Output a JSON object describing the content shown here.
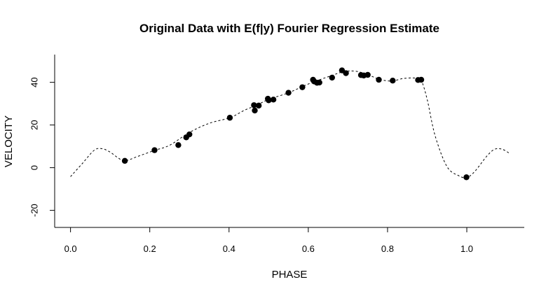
{
  "chart_data": {
    "type": "scatter",
    "title": "Original Data with E(f|y) Fourier Regression Estimate",
    "xlabel": "PHASE",
    "ylabel": "VELOCITY",
    "xlim": [
      -0.04,
      1.145
    ],
    "ylim": [
      -28,
      53
    ],
    "xticks": [
      "0.0",
      "0.2",
      "0.4",
      "0.6",
      "0.8",
      "1.0"
    ],
    "yticks": [
      "-20",
      "0",
      "20",
      "40"
    ],
    "grid": false,
    "legend": "none",
    "series": [
      {
        "kind": "points",
        "x": [
          0.137,
          0.212,
          0.272,
          0.292,
          0.3,
          0.402,
          0.463,
          0.465,
          0.475,
          0.498,
          0.5,
          0.512,
          0.55,
          0.585,
          0.612,
          0.615,
          0.622,
          0.628,
          0.66,
          0.685,
          0.695,
          0.733,
          0.74,
          0.75,
          0.778,
          0.813,
          0.877,
          0.885,
          0.999
        ],
        "y": [
          3.2,
          8.2,
          10.6,
          14.2,
          15.6,
          23.4,
          29.3,
          26.8,
          29.1,
          32.3,
          31.6,
          31.9,
          35.1,
          37.7,
          41.2,
          40.4,
          39.8,
          39.9,
          42.2,
          45.6,
          44.3,
          43.4,
          43.2,
          43.5,
          41.2,
          40.8,
          41.1,
          41.2,
          -4.5
        ]
      },
      {
        "kind": "dashed-curve",
        "x": [
          0.0,
          0.03,
          0.06,
          0.08,
          0.1,
          0.12,
          0.137,
          0.17,
          0.212,
          0.25,
          0.3,
          0.35,
          0.402,
          0.44,
          0.47,
          0.5,
          0.55,
          0.6,
          0.65,
          0.69,
          0.72,
          0.75,
          0.78,
          0.81,
          0.84,
          0.87,
          0.885,
          0.9,
          0.92,
          0.95,
          0.98,
          1.0,
          1.02,
          1.05,
          1.07,
          1.09,
          1.11
        ],
        "y": [
          -4.2,
          2.0,
          8.2,
          8.9,
          7.3,
          4.6,
          3.2,
          5.3,
          8.1,
          10.5,
          16.5,
          20.8,
          23.4,
          27.0,
          29.3,
          32.0,
          35.1,
          39.2,
          42.6,
          45.0,
          45.2,
          43.6,
          41.4,
          40.6,
          41.8,
          42.0,
          40.8,
          32.0,
          15.0,
          0.5,
          -3.8,
          -4.6,
          -1.8,
          5.3,
          8.6,
          8.6,
          6.4
        ]
      }
    ]
  }
}
